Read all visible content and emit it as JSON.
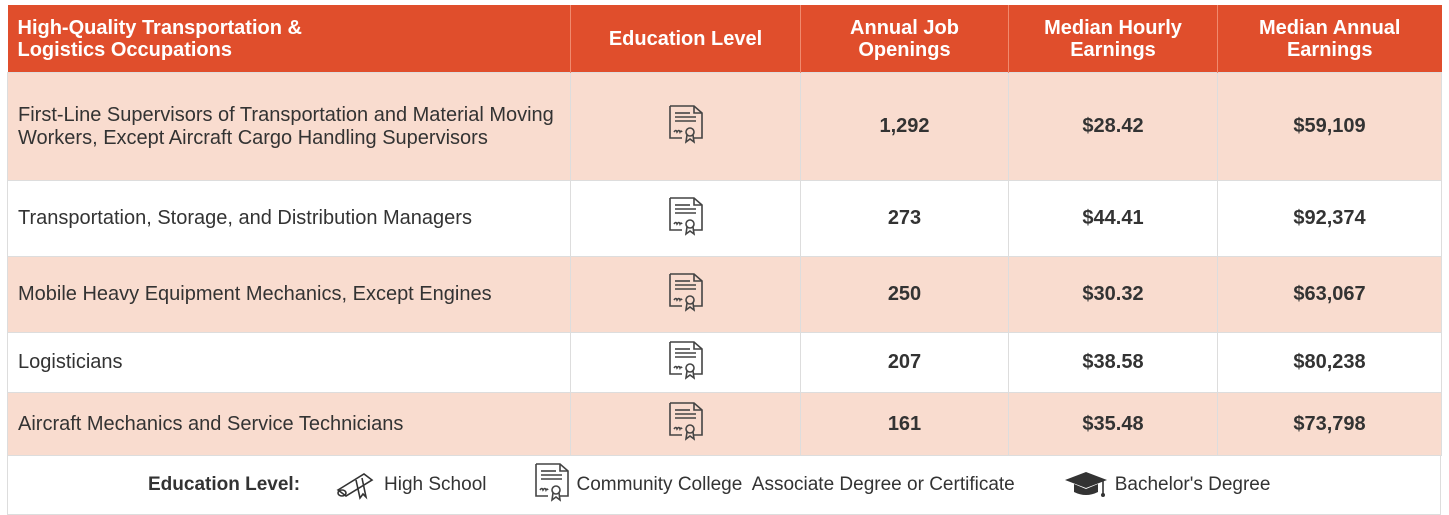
{
  "table": {
    "header": [
      "High-Quality Transportation & Logistics Occupations",
      "Education Level",
      "Annual Job Openings",
      "Median Hourly Earnings",
      "Median Annual Earnings"
    ],
    "rows": [
      [
        "First-Line Supervisors of Transportation and Material Moving Workers, Except Aircraft Cargo Handling Supervisors",
        "1,292",
        "$28.42",
        "$59,109"
      ],
      [
        "Transportation, Storage, and Distribution Managers",
        "273",
        "$44.41",
        "$92,374"
      ],
      [
        "Mobile Heavy Equipment Mechanics, Except Engines",
        "250",
        "$30.32",
        "$63,067"
      ],
      [
        "Logisticians",
        "207",
        "$38.58",
        "$80,238"
      ],
      [
        "Aircraft Mechanics and Service Technicians",
        "161",
        "$35.48",
        "$73,798"
      ]
    ]
  },
  "legend": {
    "title": "Education Level:",
    "items": [
      "High School",
      "Community College  Associate Degree or Certificate",
      "Bachelor's Degree"
    ]
  }
}
